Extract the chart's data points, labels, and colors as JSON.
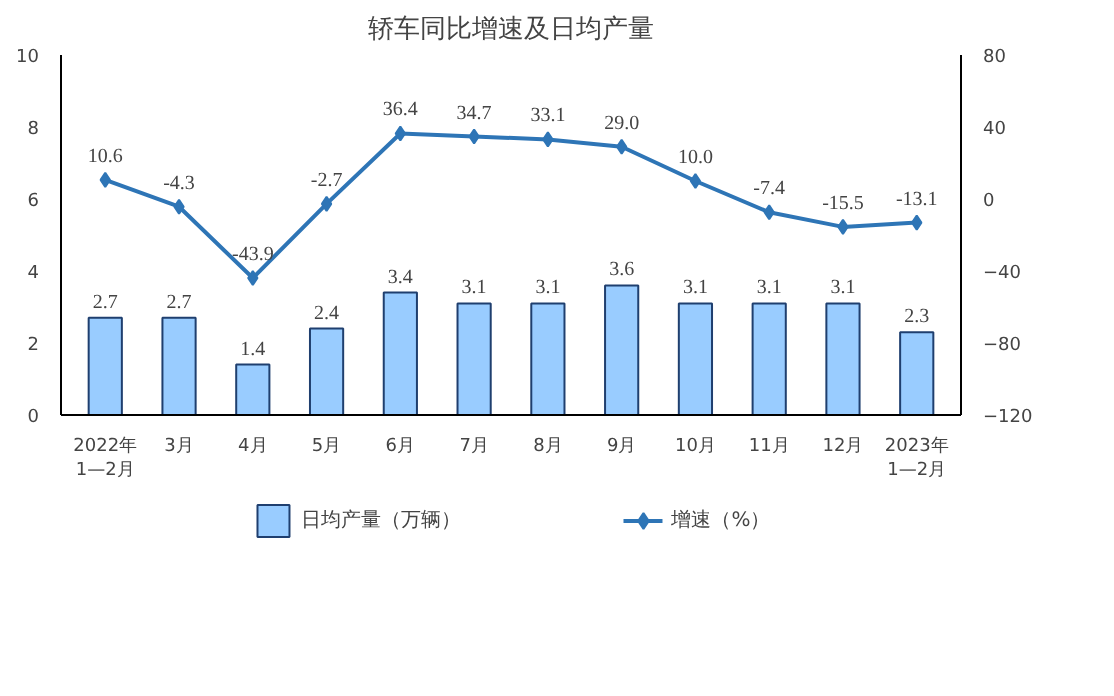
{
  "chart_data": {
    "type": "bar",
    "title": "轿车同比增速及日均产量",
    "categories": [
      "2022年\n1—2月",
      "3月",
      "4月",
      "5月",
      "6月",
      "7月",
      "8月",
      "9月",
      "10月",
      "11月",
      "12月",
      "2023年\n1—2月"
    ],
    "series": [
      {
        "name": "日均产量（万辆）",
        "color": "#99ccff",
        "values": [
          2.7,
          2.7,
          1.4,
          2.4,
          3.4,
          3.1,
          3.1,
          3.6,
          3.1,
          3.1,
          3.1,
          2.3
        ]
      },
      {
        "name": "增速（%）",
        "type": "line",
        "axis": "y2",
        "color": "#2e75b6",
        "marker": "diamond",
        "values": [
          10.6,
          -4.3,
          -43.9,
          -2.7,
          36.4,
          34.7,
          33.1,
          29.0,
          10.0,
          -7.4,
          -15.5,
          -13.1
        ],
        "value_labels": [
          "10.6",
          "-4.3",
          "-43.9",
          "-2.7",
          "36.4",
          "34.7",
          "33.1",
          "29.0",
          "10.0",
          "-7.4",
          "-15.5",
          "-13.1"
        ]
      }
    ],
    "ylim": [
      0,
      10
    ],
    "yticks": [
      0,
      2,
      4,
      6,
      8,
      10
    ],
    "y2lim": [
      -120,
      80
    ],
    "y2ticks": [
      -120,
      -80,
      -40,
      0,
      40,
      80
    ],
    "data_labels": true,
    "grid": false,
    "legend": "bottom"
  }
}
